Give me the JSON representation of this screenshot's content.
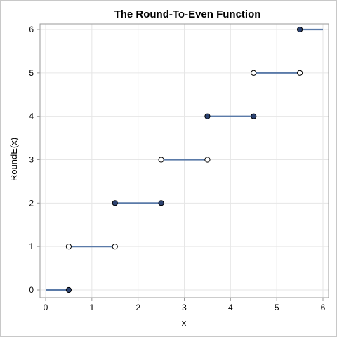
{
  "chart_data": {
    "type": "line",
    "title": "The Round-To-Even Function",
    "xlabel": "x",
    "ylabel": "RoundE(x)",
    "xlim": [
      0,
      6
    ],
    "ylim": [
      0,
      6
    ],
    "xticks": [
      0,
      1,
      2,
      3,
      4,
      5,
      6
    ],
    "yticks": [
      0,
      1,
      2,
      3,
      4,
      5,
      6
    ],
    "grid": true,
    "segments": [
      {
        "x": [
          0,
          0.5
        ],
        "y": 0,
        "left_closed": null,
        "right_closed": true
      },
      {
        "x": [
          0.5,
          1.5
        ],
        "y": 1,
        "left_closed": false,
        "right_closed": false
      },
      {
        "x": [
          1.5,
          2.5
        ],
        "y": 2,
        "left_closed": true,
        "right_closed": true
      },
      {
        "x": [
          2.5,
          3.5
        ],
        "y": 3,
        "left_closed": false,
        "right_closed": false
      },
      {
        "x": [
          3.5,
          4.5
        ],
        "y": 4,
        "left_closed": true,
        "right_closed": true
      },
      {
        "x": [
          4.5,
          5.5
        ],
        "y": 5,
        "left_closed": false,
        "right_closed": false
      },
      {
        "x": [
          5.5,
          6
        ],
        "y": 6,
        "left_closed": true,
        "right_closed": null
      }
    ],
    "colors": {
      "line": "#5a7aa8",
      "closed_marker_fill": "#2c4270",
      "open_marker_fill": "#ffffff",
      "marker_stroke": "#000000",
      "grid": "#e6e6e6",
      "axis": "#9a9a9a"
    }
  }
}
